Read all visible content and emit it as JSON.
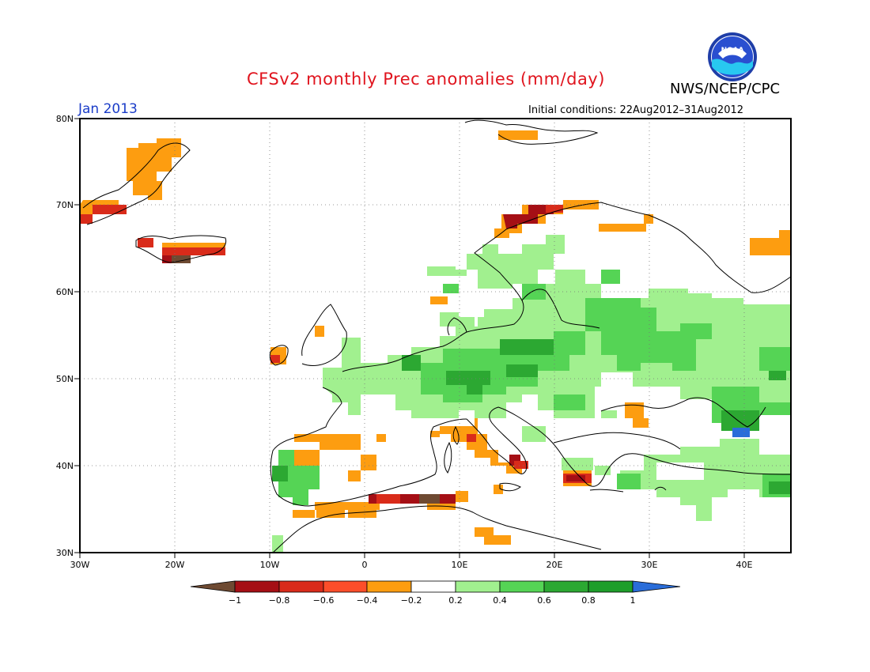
{
  "header": {
    "title": "CFSv2 monthly Prec anomalies (mm/day)",
    "agency": "NWS/NCEP/CPC",
    "month": "Jan 2013",
    "initial_conditions": "Initial conditions: 22Aug2012–31Aug2012",
    "logo_text": "NOAA"
  },
  "map": {
    "lon_range": [
      -30,
      45
    ],
    "lat_range": [
      30,
      80
    ],
    "lat_ticks": [
      "30N",
      "40N",
      "50N",
      "60N",
      "70N",
      "80N"
    ],
    "lon_ticks": [
      "30W",
      "20W",
      "10W",
      "0",
      "10E",
      "20E",
      "30E",
      "40E"
    ]
  },
  "legend": {
    "labels": [
      "−1",
      "−0.8",
      "−0.6",
      "−0.4",
      "−0.2",
      "0.2",
      "0.4",
      "0.6",
      "0.8",
      "1"
    ],
    "colors": [
      "#6e4a32",
      "#a50f15",
      "#d92b1a",
      "#fc4e2a",
      "#fd9d10",
      "#ffffff",
      "#a1f08f",
      "#55d455",
      "#2ca832",
      "#1e9e2a",
      "#2a6dd9"
    ]
  },
  "anomaly_regions": [
    {
      "name": "greenland-dry",
      "category": "dry-moderate",
      "color": "#fd9d10"
    },
    {
      "name": "iceland-dry",
      "category": "dry-strong",
      "color": "#d92b1a"
    },
    {
      "name": "norway-coast-dry",
      "category": "dry-very-strong",
      "color": "#a50f15"
    },
    {
      "name": "central-europe-wet",
      "category": "wet",
      "color": "#55d455"
    },
    {
      "name": "italy-dry",
      "category": "dry-moderate",
      "color": "#fd9d10"
    },
    {
      "name": "north-africa-dry",
      "category": "dry-very-strong",
      "color": "#a50f15"
    },
    {
      "name": "black-sea-wet",
      "category": "wet-extreme",
      "color": "#2a6dd9"
    }
  ]
}
